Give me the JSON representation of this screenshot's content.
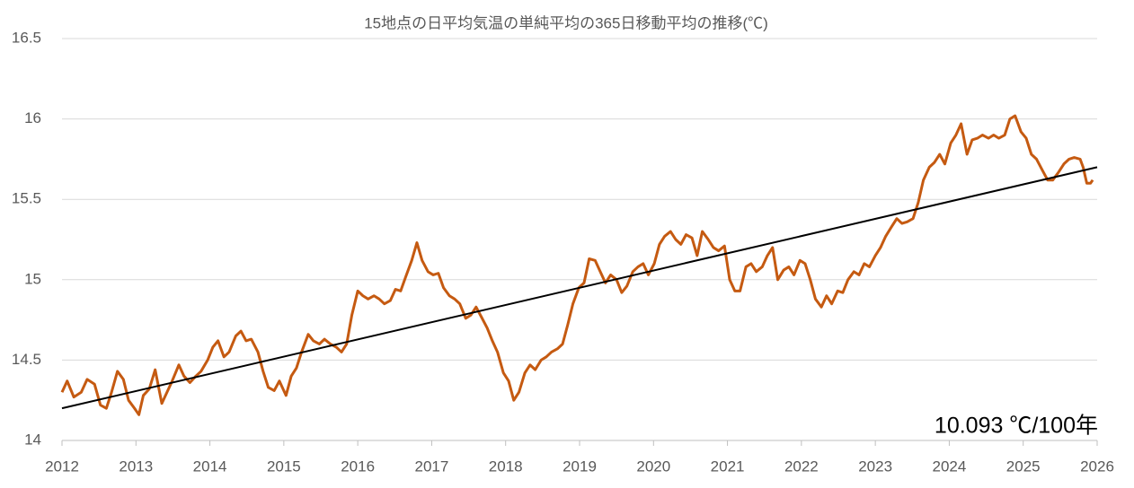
{
  "chart_data": {
    "type": "line",
    "title": "15地点の日平均気温の単純平均の365日移動平均の推移(℃)",
    "annotation": "10.093 ℃/100年",
    "xlim": [
      2012,
      2026
    ],
    "xticks": [
      2012,
      2013,
      2014,
      2015,
      2016,
      2017,
      2018,
      2019,
      2020,
      2021,
      2022,
      2023,
      2024,
      2025,
      2026
    ],
    "ylim": [
      14,
      16.5
    ],
    "yticks": [
      14,
      14.5,
      15,
      15.5,
      16,
      16.5
    ],
    "grid": true,
    "series": [
      {
        "color": "#c55a11",
        "x": [
          2012,
          2012.07,
          2012.16,
          2012.26,
          2012.34,
          2012.44,
          2012.52,
          2012.6,
          2012.67,
          2012.75,
          2012.83,
          2012.9,
          2012.98,
          2013.04,
          2013.1,
          2013.18,
          2013.26,
          2013.35,
          2013.42,
          2013.49,
          2013.58,
          2013.65,
          2013.73,
          2013.81,
          2013.88,
          2013.97,
          2014.04,
          2014.11,
          2014.19,
          2014.26,
          2014.35,
          2014.42,
          2014.49,
          2014.56,
          2014.65,
          2014.72,
          2014.79,
          2014.87,
          2014.94,
          2015.03,
          2015.1,
          2015.17,
          2015.24,
          2015.33,
          2015.4,
          2015.48,
          2015.55,
          2015.63,
          2015.71,
          2015.78,
          2015.85,
          2015.92,
          2016,
          2016.07,
          2016.14,
          2016.22,
          2016.29,
          2016.36,
          2016.44,
          2016.51,
          2016.58,
          2016.65,
          2016.73,
          2016.8,
          2016.87,
          2016.95,
          2017.02,
          2017.09,
          2017.16,
          2017.24,
          2017.31,
          2017.38,
          2017.46,
          2017.53,
          2017.6,
          2017.67,
          2017.75,
          2017.82,
          2017.89,
          2017.97,
          2018.04,
          2018.11,
          2018.18,
          2018.26,
          2018.33,
          2018.4,
          2018.48,
          2018.55,
          2018.62,
          2018.7,
          2018.77,
          2018.84,
          2018.91,
          2018.99,
          2019.06,
          2019.13,
          2019.21,
          2019.28,
          2019.35,
          2019.42,
          2019.5,
          2019.57,
          2019.64,
          2019.72,
          2019.79,
          2019.86,
          2019.93,
          2020.01,
          2020.08,
          2020.15,
          2020.23,
          2020.3,
          2020.37,
          2020.44,
          2020.52,
          2020.59,
          2020.66,
          2020.74,
          2020.81,
          2020.88,
          2020.96,
          2021.03,
          2021.1,
          2021.17,
          2021.25,
          2021.32,
          2021.39,
          2021.47,
          2021.54,
          2021.61,
          2021.68,
          2021.76,
          2021.83,
          2021.9,
          2021.98,
          2022.05,
          2022.12,
          2022.19,
          2022.27,
          2022.34,
          2022.41,
          2022.49,
          2022.56,
          2022.63,
          2022.71,
          2022.78,
          2022.85,
          2022.92,
          2023,
          2023.07,
          2023.14,
          2023.22,
          2023.29,
          2023.36,
          2023.43,
          2023.51,
          2023.58,
          2023.65,
          2023.73,
          2023.8,
          2023.87,
          2023.94,
          2024.02,
          2024.09,
          2024.16,
          2024.24,
          2024.31,
          2024.38,
          2024.45,
          2024.53,
          2024.6,
          2024.67,
          2024.75,
          2024.82,
          2024.89,
          2024.97,
          2025.04,
          2025.11,
          2025.18,
          2025.26,
          2025.33,
          2025.4,
          2025.48,
          2025.55,
          2025.62,
          2025.69,
          2025.77,
          2025.81,
          2025.86,
          2025.91,
          2025.94
        ],
        "values": [
          14.3,
          14.37,
          14.27,
          14.3,
          14.38,
          14.35,
          14.22,
          14.2,
          14.3,
          14.43,
          14.38,
          14.25,
          14.2,
          14.16,
          14.28,
          14.32,
          14.44,
          14.23,
          14.3,
          14.37,
          14.47,
          14.4,
          14.36,
          14.4,
          14.43,
          14.5,
          14.58,
          14.62,
          14.52,
          14.55,
          14.65,
          14.68,
          14.62,
          14.63,
          14.55,
          14.43,
          14.33,
          14.31,
          14.37,
          14.28,
          14.4,
          14.45,
          14.55,
          14.66,
          14.62,
          14.6,
          14.63,
          14.6,
          14.58,
          14.55,
          14.6,
          14.78,
          14.93,
          14.9,
          14.88,
          14.9,
          14.88,
          14.85,
          14.87,
          14.94,
          14.93,
          15.02,
          15.12,
          15.23,
          15.12,
          15.05,
          15.03,
          15.04,
          14.95,
          14.9,
          14.88,
          14.85,
          14.76,
          14.78,
          14.83,
          14.77,
          14.7,
          14.62,
          14.55,
          14.42,
          14.37,
          14.25,
          14.3,
          14.42,
          14.47,
          14.44,
          14.5,
          14.52,
          14.55,
          14.57,
          14.6,
          14.72,
          14.85,
          14.95,
          14.98,
          15.13,
          15.12,
          15.05,
          14.98,
          15.03,
          15,
          14.92,
          14.96,
          15.05,
          15.08,
          15.1,
          15.03,
          15.1,
          15.22,
          15.27,
          15.3,
          15.25,
          15.22,
          15.28,
          15.26,
          15.15,
          15.3,
          15.25,
          15.2,
          15.18,
          15.21,
          15,
          14.93,
          14.93,
          15.08,
          15.1,
          15.05,
          15.08,
          15.15,
          15.2,
          15,
          15.06,
          15.08,
          15.03,
          15.12,
          15.1,
          15,
          14.88,
          14.83,
          14.9,
          14.85,
          14.93,
          14.92,
          15,
          15.05,
          15.03,
          15.1,
          15.08,
          15.15,
          15.2,
          15.27,
          15.33,
          15.38,
          15.35,
          15.36,
          15.38,
          15.48,
          15.62,
          15.7,
          15.73,
          15.78,
          15.72,
          15.85,
          15.9,
          15.97,
          15.78,
          15.87,
          15.88,
          15.9,
          15.88,
          15.9,
          15.88,
          15.9,
          16,
          16.02,
          15.92,
          15.88,
          15.78,
          15.75,
          15.68,
          15.62,
          15.62,
          15.67,
          15.72,
          15.75,
          15.76,
          15.75,
          15.7,
          15.6,
          15.6,
          15.62
        ]
      },
      {
        "color": "#000000",
        "x": [
          2012,
          2026
        ],
        "values": [
          14.2,
          15.7
        ]
      }
    ]
  }
}
